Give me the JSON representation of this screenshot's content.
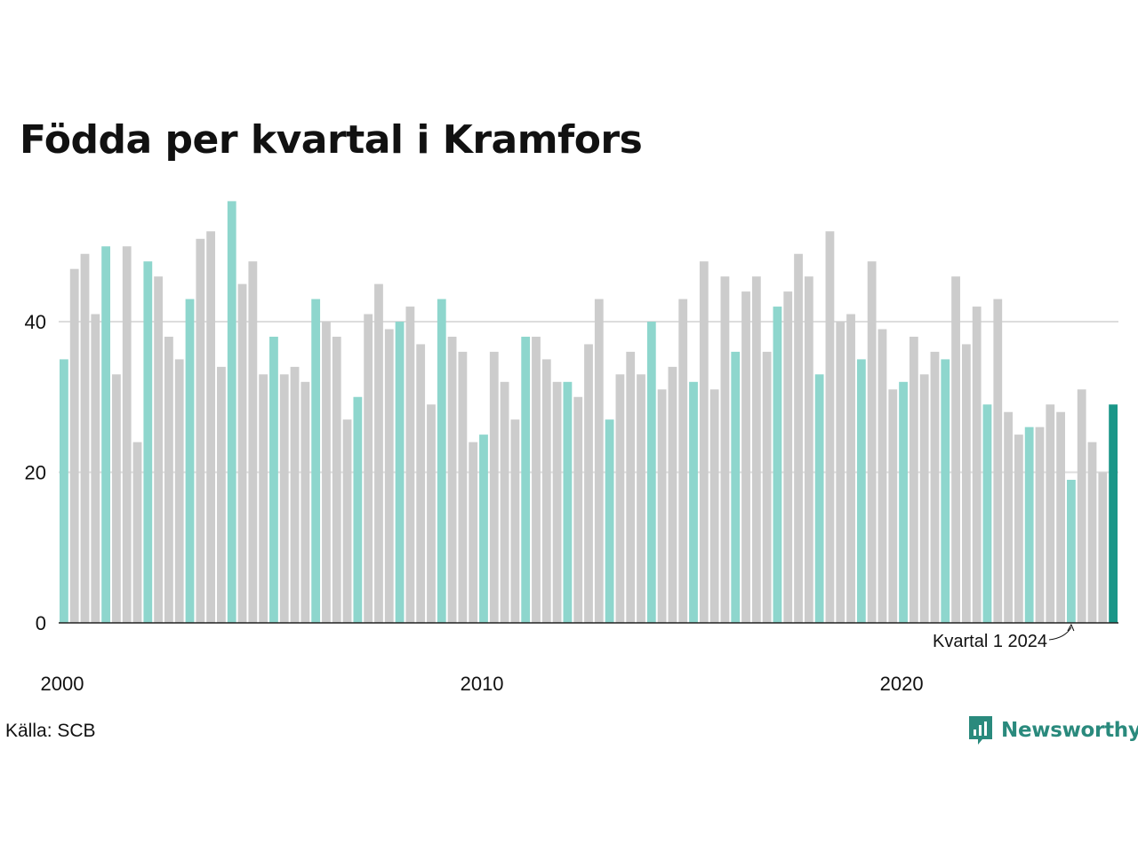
{
  "title": "Födda per kvartal i Kramfors",
  "source": "Källa: SCB",
  "brand": {
    "name": "Newsworthy",
    "icon": "newsworthy-logo-icon"
  },
  "colors": {
    "highlight_q1": "#8ed6cd",
    "other": "#cccccc",
    "latest": "#1a9688",
    "grid": "#dddddd",
    "axis": "#222222",
    "brand": "#2a8a7d"
  },
  "chart_data": {
    "type": "bar",
    "start_year": 2000,
    "quarters_per_year": 4,
    "highlight": "Q1 bars highlighted; most recent bar emphasized",
    "values": [
      35,
      47,
      49,
      41,
      50,
      33,
      50,
      24,
      48,
      46,
      38,
      35,
      43,
      51,
      52,
      34,
      56,
      45,
      48,
      33,
      38,
      33,
      34,
      32,
      43,
      40,
      38,
      27,
      30,
      41,
      45,
      39,
      40,
      42,
      37,
      29,
      43,
      38,
      36,
      24,
      25,
      36,
      32,
      27,
      38,
      38,
      35,
      32,
      32,
      30,
      37,
      43,
      27,
      33,
      36,
      33,
      40,
      31,
      34,
      43,
      32,
      48,
      31,
      46,
      36,
      44,
      46,
      36,
      42,
      44,
      49,
      46,
      33,
      52,
      40,
      41,
      35,
      48,
      39,
      31,
      32,
      38,
      33,
      36,
      35,
      46,
      37,
      42,
      29,
      43,
      28,
      25,
      26,
      26,
      29,
      28,
      19,
      31,
      24,
      20,
      29
    ],
    "ylim": [
      0,
      56
    ],
    "yticks": [
      "0",
      "20",
      "40"
    ],
    "xticks": [
      "2000",
      "2010",
      "2020"
    ],
    "grid": true,
    "annotation": "Kvartal 1 2024"
  }
}
